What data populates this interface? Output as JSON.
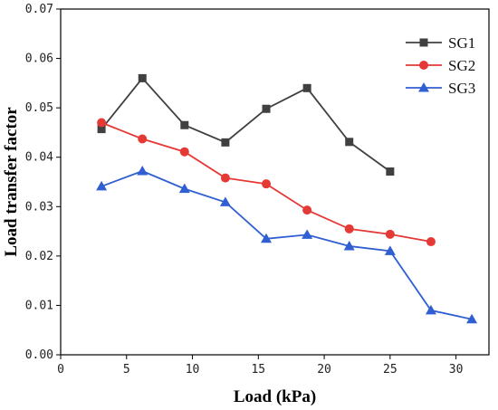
{
  "chart_data": {
    "type": "line",
    "xlabel": "Load (kPa)",
    "ylabel": "Load transfer factor",
    "xlim": [
      0,
      32.5
    ],
    "ylim": [
      0,
      0.07
    ],
    "x_ticks": [
      0,
      5,
      10,
      15,
      20,
      25,
      30
    ],
    "x_tick_labels": [
      "0",
      "5",
      "10",
      "15",
      "20",
      "25",
      "30"
    ],
    "y_ticks": [
      0,
      0.01,
      0.02,
      0.03,
      0.04,
      0.05,
      0.06,
      0.07
    ],
    "y_tick_labels": [
      "0.00",
      "0.01",
      "0.02",
      "0.03",
      "0.04",
      "0.05",
      "0.06",
      "0.07"
    ],
    "grid": false,
    "legend_position": "top-right",
    "series": [
      {
        "name": "SG1",
        "color": "#404040",
        "marker": "square",
        "x": [
          3.1,
          6.2,
          9.4,
          12.5,
          15.6,
          18.7,
          21.9,
          25.0
        ],
        "y": [
          0.0457,
          0.056,
          0.0465,
          0.043,
          0.0498,
          0.054,
          0.0431,
          0.0371
        ]
      },
      {
        "name": "SG2",
        "color": "#e53935",
        "marker": "circle",
        "x": [
          3.1,
          6.2,
          9.4,
          12.5,
          15.6,
          18.7,
          21.9,
          25.0,
          28.1
        ],
        "y": [
          0.047,
          0.0437,
          0.0411,
          0.0358,
          0.0346,
          0.0293,
          0.0255,
          0.0244,
          0.0229
        ]
      },
      {
        "name": "SG3",
        "color": "#2f5fd0",
        "marker": "triangle",
        "x": [
          3.1,
          6.2,
          9.4,
          12.5,
          15.6,
          18.7,
          21.9,
          25.0,
          28.1,
          31.2
        ],
        "y": [
          0.0341,
          0.0372,
          0.0336,
          0.0309,
          0.0235,
          0.0243,
          0.022,
          0.021,
          0.009,
          0.0072
        ]
      }
    ]
  }
}
